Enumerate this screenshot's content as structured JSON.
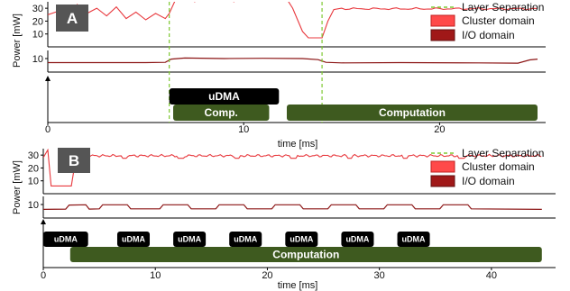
{
  "colors": {
    "cluster": "#e8383d",
    "cluster_fill": "#ff4a4a",
    "io": "#8b1414",
    "io_fill": "#a01818",
    "separation": "#7ec832",
    "udma_block": "#000000",
    "comp_block": "#3e5a1f",
    "label_box": "#555555"
  },
  "chart_data": [
    {
      "type": "line",
      "panel": "A",
      "ylabel": "Power [mW]",
      "xlabel": "time [ms]",
      "xlim": [
        0,
        25
      ],
      "xticks": [
        "0",
        "10",
        "20"
      ],
      "upper_yticks": [
        "30",
        "20",
        "10"
      ],
      "lower_yticks": [
        "10"
      ],
      "upper_ylim": [
        0,
        35
      ],
      "lower_ylim": [
        5,
        13
      ],
      "legend": [
        "Layer Separation",
        "Cluster domain",
        "I/O domain"
      ],
      "legend_position": "top-right",
      "layer_separation_x": [
        6.2,
        14.0
      ],
      "series": [
        {
          "name": "Cluster domain",
          "x": [
            0.0,
            0.6,
            1.0,
            1.5,
            2.0,
            2.5,
            3.0,
            3.5,
            4.0,
            4.5,
            5.0,
            5.5,
            6.0,
            6.2,
            6.5,
            7.0,
            7.5,
            8.0,
            8.5,
            9.0,
            9.5,
            10.0,
            10.5,
            11.0,
            11.5,
            12.0,
            12.5,
            13.0,
            13.3,
            13.6,
            14.0,
            14.3,
            14.6,
            15.0,
            16.0,
            18.0,
            20.0,
            22.0,
            24.0,
            25.0
          ],
          "y": [
            25,
            28,
            22,
            33,
            26,
            30,
            24,
            31,
            22,
            27,
            21,
            26,
            22,
            26,
            36,
            40,
            35,
            41,
            36,
            40,
            35,
            41,
            36,
            40,
            36,
            42,
            30,
            12,
            7,
            7,
            7,
            20,
            29,
            30,
            29,
            30,
            30,
            29,
            30,
            30
          ]
        },
        {
          "name": "I/O domain",
          "x": [
            0.0,
            5.0,
            6.0,
            6.3,
            7.0,
            9.0,
            11.0,
            13.0,
            13.8,
            14.2,
            15.0,
            18.0,
            22.0,
            24.0,
            24.6,
            25.0
          ],
          "y": [
            8.5,
            8.5,
            8.6,
            9.8,
            10.2,
            10.0,
            10.1,
            10.0,
            9.6,
            8.6,
            8.4,
            8.5,
            8.4,
            8.3,
            9.5,
            9.8
          ]
        }
      ],
      "blocks": [
        {
          "label": "uDMA",
          "kind": "udma",
          "start": 6.2,
          "end": 11.8,
          "row": "top"
        },
        {
          "label": "Comp.",
          "kind": "comp",
          "start": 6.4,
          "end": 11.3,
          "row": "bottom"
        },
        {
          "label": "Computation",
          "kind": "comp",
          "start": 12.2,
          "end": 25.0,
          "row": "bottom"
        }
      ]
    },
    {
      "type": "line",
      "panel": "B",
      "ylabel": "Power [mW]",
      "xlabel": "time [ms]",
      "xlim": [
        0,
        45
      ],
      "xticks": [
        "0",
        "10",
        "20",
        "30",
        "40"
      ],
      "upper_yticks": [
        "30",
        "20",
        "10"
      ],
      "lower_yticks": [
        "10"
      ],
      "upper_ylim": [
        0,
        35
      ],
      "lower_ylim": [
        5,
        13
      ],
      "legend": [
        "Layer Separation",
        "Cluster domain",
        "I/O domain"
      ],
      "legend_position": "top-right",
      "layer_separation_x": [],
      "series": [
        {
          "name": "Cluster domain",
          "x": [
            0.0,
            0.4,
            0.7,
            2.5,
            2.8,
            3.2,
            5.0,
            10.0,
            15.0,
            20.0,
            25.0,
            30.0,
            35.0,
            40.0,
            44.5
          ],
          "y": [
            28,
            34,
            6,
            6,
            22,
            29,
            30,
            29,
            30,
            29,
            30,
            29,
            30,
            29,
            30
          ]
        },
        {
          "name": "I/O domain",
          "x": [
            0.0,
            2.0,
            2.3,
            3.8,
            4.1,
            5.0,
            6.3,
            7.0,
            8.6
          ],
          "y": [
            8.2,
            8.3,
            9.8,
            9.9,
            8.3,
            8.4,
            8.4,
            8.4,
            8.4
          ]
        }
      ],
      "io_pulses": [
        [
          5.0,
          7.8
        ],
        [
          10.4,
          13.2
        ],
        [
          15.4,
          18.2
        ],
        [
          20.4,
          23.2
        ],
        [
          25.4,
          28.2
        ],
        [
          30.4,
          33.2
        ],
        [
          35.4,
          38.2
        ]
      ],
      "cluster_dips": [
        7.3,
        12.3,
        17.3,
        22.3,
        27.3,
        32.3,
        37.3
      ],
      "blocks": [
        {
          "label": "uDMA",
          "kind": "udma",
          "start": 0.0,
          "end": 4.0,
          "row": "top"
        },
        {
          "label": "uDMA",
          "kind": "udma",
          "start": 6.6,
          "end": 9.5,
          "row": "top"
        },
        {
          "label": "uDMA",
          "kind": "udma",
          "start": 11.6,
          "end": 14.5,
          "row": "top"
        },
        {
          "label": "uDMA",
          "kind": "udma",
          "start": 16.6,
          "end": 19.5,
          "row": "top"
        },
        {
          "label": "uDMA",
          "kind": "udma",
          "start": 21.6,
          "end": 24.5,
          "row": "top"
        },
        {
          "label": "uDMA",
          "kind": "udma",
          "start": 26.6,
          "end": 29.5,
          "row": "top"
        },
        {
          "label": "uDMA",
          "kind": "udma",
          "start": 31.6,
          "end": 34.5,
          "row": "top"
        },
        {
          "label": "Computation",
          "kind": "comp",
          "start": 2.4,
          "end": 44.5,
          "row": "bottom"
        }
      ]
    }
  ]
}
